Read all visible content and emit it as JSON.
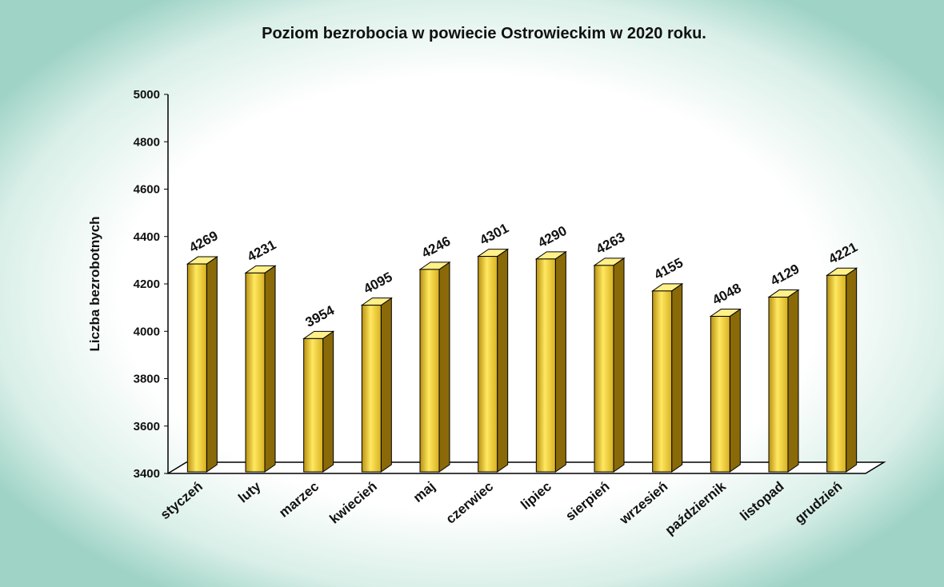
{
  "chart_data": {
    "type": "bar3d",
    "title": "Poziom bezrobocia w powiecie Ostrowieckim w 2020 roku.",
    "y_label": "Liczba bezrobotnych",
    "categories": [
      "styczeń",
      "luty",
      "marzec",
      "kwiecień",
      "maj",
      "czerwiec",
      "lipiec",
      "sierpień",
      "wrzesień",
      "październik",
      "listopad",
      "grudzień"
    ],
    "values": [
      4269,
      4231,
      3954,
      4095,
      4246,
      4301,
      4290,
      4263,
      4155,
      4048,
      4129,
      4221
    ],
    "color": "#e8c020",
    "ylim": [
      3400,
      5000
    ],
    "yticks": [
      3400,
      3600,
      3800,
      4000,
      4200,
      4400,
      4600,
      4800,
      5000
    ],
    "grid": false
  }
}
